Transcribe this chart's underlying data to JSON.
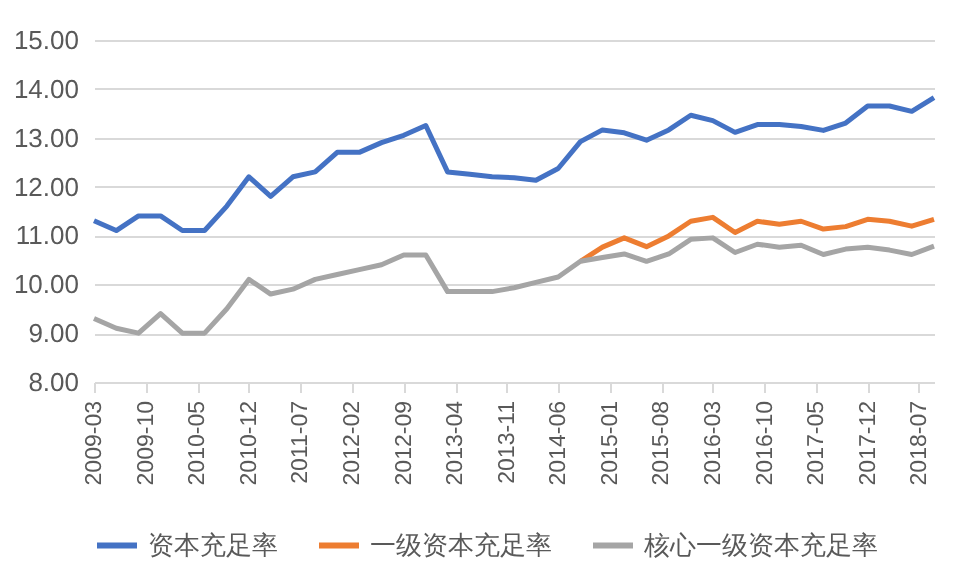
{
  "chart_data": {
    "type": "line",
    "x": [
      "2009-03",
      "2009-06",
      "2009-09",
      "2009-12",
      "2010-03",
      "2010-06",
      "2010-09",
      "2010-12",
      "2011-03",
      "2011-06",
      "2011-09",
      "2011-12",
      "2012-03",
      "2012-06",
      "2012-09",
      "2012-12",
      "2013-03",
      "2013-06",
      "2013-09",
      "2013-12",
      "2014-03",
      "2014-06",
      "2014-09",
      "2014-12",
      "2015-03",
      "2015-06",
      "2015-09",
      "2015-12",
      "2016-03",
      "2016-06",
      "2016-09",
      "2016-12",
      "2017-03",
      "2017-06",
      "2017-09",
      "2017-12",
      "2018-03",
      "2018-06",
      "2018-09"
    ],
    "series": [
      {
        "name": "资本充足率",
        "color": "#4472c4",
        "values": [
          11.3,
          11.1,
          11.4,
          11.4,
          11.1,
          11.1,
          11.6,
          12.2,
          11.8,
          12.2,
          12.3,
          12.7,
          12.7,
          12.9,
          13.05,
          13.25,
          12.3,
          12.25,
          12.2,
          12.18,
          12.13,
          12.37,
          12.92,
          13.16,
          13.1,
          12.95,
          13.16,
          13.46,
          13.35,
          13.11,
          13.27,
          13.27,
          13.23,
          13.15,
          13.3,
          13.65,
          13.65,
          13.54,
          13.82
        ]
      },
      {
        "name": "一级资本充足率",
        "color": "#ed7d31",
        "values": [
          null,
          null,
          null,
          null,
          null,
          null,
          null,
          null,
          null,
          null,
          null,
          null,
          null,
          null,
          null,
          null,
          null,
          null,
          null,
          null,
          null,
          null,
          10.47,
          10.76,
          10.95,
          10.77,
          10.99,
          11.29,
          11.37,
          11.06,
          11.29,
          11.23,
          11.29,
          11.13,
          11.18,
          11.33,
          11.29,
          11.19,
          11.33
        ]
      },
      {
        "name": "核心一级资本充足率",
        "color": "#a5a5a5",
        "values": [
          9.3,
          9.1,
          9.0,
          9.4,
          9.0,
          9.0,
          9.5,
          10.1,
          9.8,
          9.9,
          10.1,
          10.2,
          10.3,
          10.4,
          10.6,
          10.6,
          9.85,
          9.85,
          9.85,
          9.93,
          10.04,
          10.15,
          10.47,
          10.55,
          10.62,
          10.47,
          10.62,
          10.92,
          10.95,
          10.65,
          10.82,
          10.76,
          10.8,
          10.61,
          10.72,
          10.76,
          10.7,
          10.61,
          10.78
        ]
      }
    ],
    "xlim": [
      "2009-03",
      "2018-09"
    ],
    "xticks": [
      "2009-03",
      "2009-10",
      "2010-05",
      "2010-12",
      "2011-07",
      "2012-02",
      "2012-09",
      "2013-04",
      "2013-11",
      "2014-06",
      "2015-01",
      "2015-08",
      "2016-03",
      "2016-10",
      "2017-05",
      "2017-12",
      "2018-07"
    ],
    "ylim": [
      8,
      15
    ],
    "yticks": [
      {
        "value": 8,
        "label": "8.00"
      },
      {
        "value": 9,
        "label": "9.00"
      },
      {
        "value": 10,
        "label": "10.00"
      },
      {
        "value": 11,
        "label": "11.00"
      },
      {
        "value": 12,
        "label": "12.00"
      },
      {
        "value": 13,
        "label": "13.00"
      },
      {
        "value": 14,
        "label": "14.00"
      },
      {
        "value": 15,
        "label": "15.00"
      }
    ],
    "grid": "y",
    "legend": "bottom",
    "line_style": "solid",
    "marker": "none"
  }
}
